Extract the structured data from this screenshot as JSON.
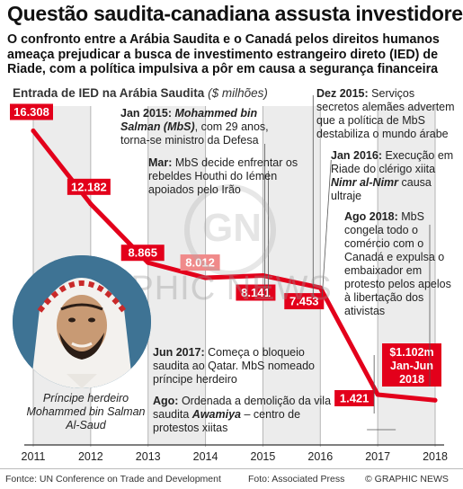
{
  "header": {
    "title": "Questão saudita-canadiana assusta investidores",
    "subtitle_lines": [
      "O confronto entre a Arábia Saudita e o Canadá pelos direitos humanos",
      "ameaça prejudicar a busca de investimento estrangeiro direto (IED) de",
      "Riade, com a política impulsiva a pôr em causa a segurança financeira"
    ]
  },
  "chart_data": {
    "type": "line",
    "title": "Entrada de IED na Arábia Saudita",
    "unit": "($ milhões)",
    "x": [
      2011,
      2012,
      2013,
      2014,
      2015,
      2016,
      2017,
      2018
    ],
    "values": [
      16308,
      12182,
      8865,
      8012,
      8141,
      7453,
      1421,
      1102
    ],
    "value_labels": [
      "16.308",
      "12.182",
      "8.865",
      "8.012",
      "8.141",
      "7.453",
      "1.421",
      "$1.102m Jan-Jun 2018"
    ],
    "ylim": [
      0,
      17500
    ],
    "line_color": "#e3001b",
    "grid": "vertical-bands"
  },
  "annotations": {
    "jan2015": {
      "label": "Jan 2015:",
      "who": "Mohammed bin Salman (MbS)",
      "rest": ", com 29 anos, torna-se ministro da Defesa"
    },
    "mar": {
      "label": "Mar:",
      "rest": "MbS decide enfrentar os rebeldes Houthi do Iémen apoiados pelo Irão"
    },
    "dez2015": {
      "label": "Dez 2015:",
      "rest": "Serviços secretos alemães advertem que a política de MbS destabiliza o mundo árabe"
    },
    "jan2016": {
      "label": "Jan 2016:",
      "rest1": "Execução em Riade do clérigo xiita",
      "who": "Nimr al-Nimr",
      "rest2": "causa ultraje"
    },
    "ago2018": {
      "label": "Ago 2018:",
      "rest": "MbS congela todo o comércio com o Canadá e expulsa o embaixador em protesto pelos apelos à libertação dos ativistas"
    },
    "jun2017": {
      "label": "Jun 2017:",
      "rest": "Começa o bloqueio saudita ao Qatar. MbS nomeado príncipe herdeiro"
    },
    "ago": {
      "label": "Ago:",
      "rest1": "Ordenada a demolição da vila saudita",
      "who": "Awamiya",
      "rest2": "– centro de protestos xiitas"
    }
  },
  "caption": "Príncipe herdeiro Mohammed bin Salman Al-Saud",
  "footer": {
    "source": "Fontce: UN Conference on Trade and Development",
    "photo": "Foto: Associated Press",
    "copyright": "© GRAPHIC NEWS"
  },
  "watermark": "GRAPHIC NEWS",
  "watermark_logo": "GN"
}
